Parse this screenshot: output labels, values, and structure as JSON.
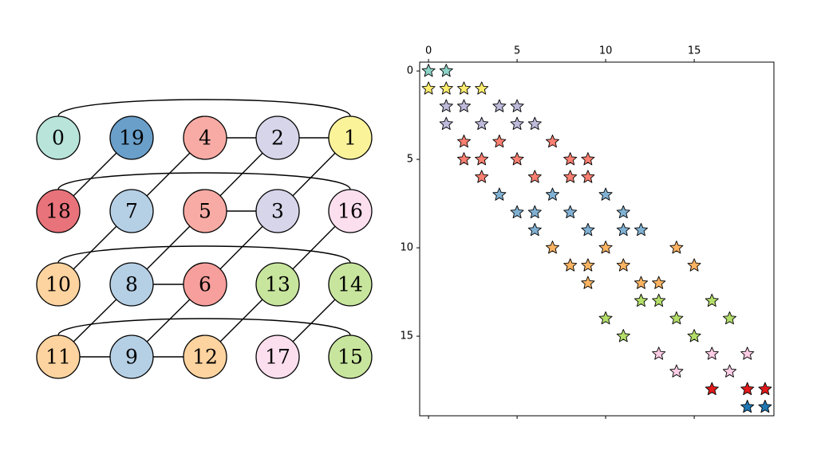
{
  "graph": {
    "nodes": [
      {
        "label": "0",
        "color": "#b8e4da"
      },
      {
        "label": "1",
        "color": "#faf39a"
      },
      {
        "label": "2",
        "color": "#d6d5ea"
      },
      {
        "label": "3",
        "color": "#d6d5ea"
      },
      {
        "label": "4",
        "color": "#f8aba4"
      },
      {
        "label": "5",
        "color": "#f8aba4"
      },
      {
        "label": "6",
        "color": "#f69f9c"
      },
      {
        "label": "7",
        "color": "#b5cfe5"
      },
      {
        "label": "8",
        "color": "#b5cfe5"
      },
      {
        "label": "9",
        "color": "#b5cfe5"
      },
      {
        "label": "10",
        "color": "#fdd39f"
      },
      {
        "label": "11",
        "color": "#fdd39f"
      },
      {
        "label": "12",
        "color": "#fdd39f"
      },
      {
        "label": "13",
        "color": "#c8e59d"
      },
      {
        "label": "14",
        "color": "#c8e59d"
      },
      {
        "label": "15",
        "color": "#c8e59d"
      },
      {
        "label": "16",
        "color": "#fcdfee"
      },
      {
        "label": "17",
        "color": "#fcdfee"
      },
      {
        "label": "18",
        "color": "#e9737b"
      },
      {
        "label": "19",
        "color": "#6a9fca"
      }
    ]
  },
  "chart_data": {
    "type": "scatter",
    "marker": "star",
    "xlim": [
      -0.5,
      19.5
    ],
    "ylim": [
      19.5,
      -0.5
    ],
    "xticks": [
      0,
      5,
      10,
      15
    ],
    "yticks": [
      0,
      5,
      10,
      15
    ],
    "series": [
      {
        "color": "#8dd3c7",
        "x": [
          0,
          1
        ],
        "values": [
          0,
          0
        ]
      },
      {
        "color": "#ffed6f",
        "x": [
          0,
          1,
          2,
          3
        ],
        "values": [
          1,
          1,
          1,
          1
        ]
      },
      {
        "color": "#bebada",
        "x": [
          1,
          2,
          4,
          5,
          1,
          3,
          5,
          6
        ],
        "values": [
          2,
          2,
          2,
          2,
          3,
          3,
          3,
          3
        ]
      },
      {
        "color": "#fb8072",
        "x": [
          2,
          4,
          7,
          2,
          3,
          5,
          8,
          9,
          3,
          6,
          8,
          9
        ],
        "values": [
          4,
          4,
          4,
          5,
          5,
          5,
          5,
          5,
          6,
          6,
          6,
          6
        ]
      },
      {
        "color": "#80b1d3",
        "x": [
          4,
          7,
          10,
          5,
          6,
          8,
          11,
          6,
          9,
          11,
          12
        ],
        "values": [
          7,
          7,
          7,
          8,
          8,
          8,
          8,
          9,
          9,
          9,
          9
        ]
      },
      {
        "color": "#fdb462",
        "x": [
          7,
          10,
          14,
          8,
          9,
          11,
          15,
          9,
          12,
          13
        ],
        "values": [
          10,
          10,
          10,
          11,
          11,
          11,
          11,
          12,
          12,
          12
        ]
      },
      {
        "color": "#b3de69",
        "x": [
          12,
          13,
          16,
          10,
          14,
          17,
          11,
          15
        ],
        "values": [
          13,
          13,
          13,
          14,
          14,
          14,
          15,
          15
        ]
      },
      {
        "color": "#fccde5",
        "x": [
          13,
          16,
          18,
          14,
          17
        ],
        "values": [
          16,
          16,
          16,
          17,
          17
        ]
      },
      {
        "color": "#e31a1c",
        "x": [
          16,
          18,
          19
        ],
        "values": [
          18,
          18,
          18
        ]
      },
      {
        "color": "#1f78b4",
        "x": [
          18,
          19
        ],
        "values": [
          19,
          19
        ]
      }
    ]
  }
}
